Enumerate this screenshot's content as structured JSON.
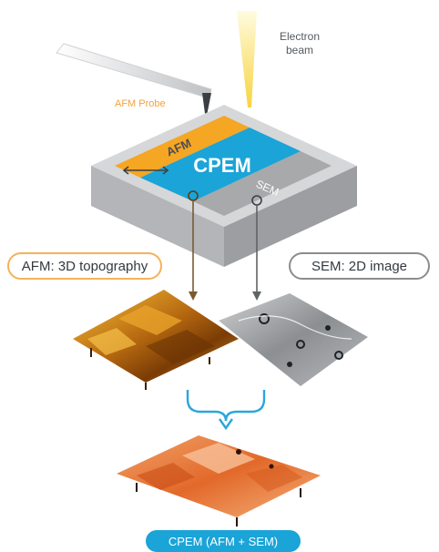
{
  "labels": {
    "electron_beam": [
      "Electron",
      "beam"
    ],
    "afm_probe": "AFM Probe",
    "zone_afm": "AFM",
    "zone_cpem": "CPEM",
    "zone_sem": "SEM",
    "afm_result": "AFM: 3D topography",
    "sem_result": "SEM: 2D image",
    "combined_result": "CPEM (AFM + SEM)"
  },
  "colors": {
    "afm_orange": "#f5a623",
    "cpem_blue": "#1aa4d8",
    "sem_gray": "#a7a9ab",
    "stage_top": "#d6d7d9",
    "stage_side": "#a8aaad",
    "beam_yellow": "#fbe36a",
    "arrow_brown": "#7a5a30",
    "arrow_gray": "#5f6366",
    "arrow_blue": "#2aa6dc"
  }
}
